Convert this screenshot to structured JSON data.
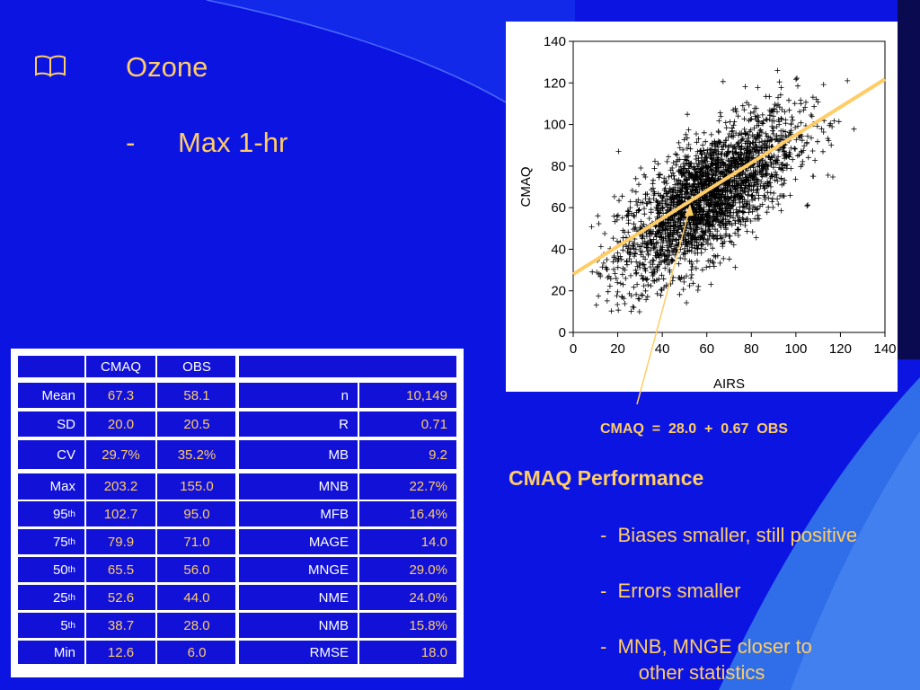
{
  "slide": {
    "bullet_icon": "book-icon",
    "title": "Ozone",
    "subitem_dash": "-",
    "subitem": "Max 1-hr"
  },
  "left_table": {
    "headers": [
      "",
      "CMAQ",
      "OBS"
    ],
    "rows": [
      {
        "label": "Mean",
        "sup": "",
        "cmaq": "67.3",
        "obs": "58.1"
      },
      {
        "label": "SD",
        "sup": "",
        "cmaq": "20.0",
        "obs": "20.5"
      },
      {
        "label": "CV",
        "sup": "",
        "cmaq": "29.7%",
        "obs": "35.2%"
      },
      {
        "label": "Max",
        "sup": "",
        "cmaq": "203.2",
        "obs": "155.0"
      },
      {
        "label": "95",
        "sup": "th",
        "cmaq": "102.7",
        "obs": "95.0"
      },
      {
        "label": "75",
        "sup": "th",
        "cmaq": "79.9",
        "obs": "71.0"
      },
      {
        "label": "50",
        "sup": "th",
        "cmaq": "65.5",
        "obs": "56.0"
      },
      {
        "label": "25",
        "sup": "th",
        "cmaq": "52.6",
        "obs": "44.0"
      },
      {
        "label": "5",
        "sup": "th",
        "cmaq": "38.7",
        "obs": "28.0"
      },
      {
        "label": "Min",
        "sup": "",
        "cmaq": "12.6",
        "obs": "6.0"
      }
    ]
  },
  "right_table": {
    "rows": [
      {
        "stat": "n",
        "value": "10,149"
      },
      {
        "stat": "R",
        "value": "0.71"
      },
      {
        "stat": "MB",
        "value": "9.2"
      },
      {
        "stat": "MNB",
        "value": "22.7%"
      },
      {
        "stat": "MFB",
        "value": "16.4%"
      },
      {
        "stat": "MAGE",
        "value": "14.0"
      },
      {
        "stat": "MNGE",
        "value": "29.0%"
      },
      {
        "stat": "NME",
        "value": "24.0%"
      },
      {
        "stat": "NMB",
        "value": "15.8%"
      },
      {
        "stat": "RMSE",
        "value": "18.0"
      }
    ]
  },
  "chart_data": {
    "type": "scatter",
    "xlabel": "AIRS",
    "ylabel": "CMAQ",
    "xlim": [
      0,
      140
    ],
    "ylim": [
      0,
      140
    ],
    "xticks": [
      "0",
      "20",
      "40",
      "60",
      "80",
      "100",
      "120",
      "140"
    ],
    "yticks": [
      "0",
      "20",
      "40",
      "60",
      "80",
      "100",
      "120",
      "140"
    ],
    "marker": "+",
    "n": 10149,
    "point_cloud": {
      "center_x": 60,
      "center_y": 65,
      "x_sd": 20,
      "y_sd": 20,
      "correlation": 0.71
    },
    "regression": {
      "intercept": 28.0,
      "slope": 0.67,
      "color": "#ffcc66"
    },
    "regression_label": "CMAQ  =  28.0  +  0.67  OBS",
    "annotation_arrow_color": "#ffcc66"
  },
  "performance": {
    "title": "CMAQ Performance",
    "items": [
      "-  Biases smaller, still positive",
      "-  Errors smaller",
      "-  MNB, MNGE closer to",
      "       other statistics"
    ]
  },
  "colors": {
    "background": "#0c14e2",
    "accent_text": "#ffcc66",
    "cell_bg": "#1111d8"
  }
}
